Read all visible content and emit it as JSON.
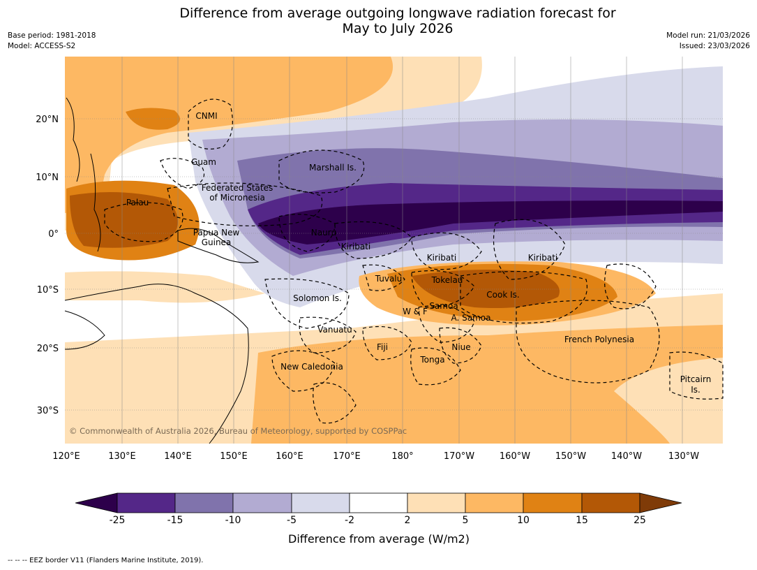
{
  "title_line1": "Difference from average outgoing longwave radiation forecast for",
  "title_line2": "May to July 2026",
  "meta_left": {
    "base_period": "Base period: 1981-2018",
    "model": "Model: ACCESS-S2"
  },
  "meta_right": {
    "model_run": "Model run: 21/03/2026",
    "issued": "Issued: 23/03/2026"
  },
  "lat_labels": [
    "20°N",
    "10°N",
    "0°",
    "10°S",
    "20°S",
    "30°S"
  ],
  "lon_labels": [
    "120°E",
    "130°E",
    "140°E",
    "150°E",
    "160°E",
    "170°E",
    "180°",
    "170°W",
    "160°W",
    "150°W",
    "140°W",
    "130°W"
  ],
  "regions": [
    "CNMI",
    "Guam",
    "Marshall Is.",
    "Federated States",
    "of Micronesia",
    "Palau",
    "Papua New",
    "Guinea",
    "Nauru",
    "Kiribati",
    "Kiribati",
    "Kiribati",
    "Tuvalu",
    "Tokelau",
    "Cook Is.",
    "Solomon Is.",
    "Samoa",
    "W & F",
    "A. Samoa",
    "Vanuatu",
    "Fiji",
    "Niue",
    "Tonga",
    "French Polynesia",
    "New Caledonia",
    "Pitcairn",
    "Is."
  ],
  "copyright": "© Commonwealth of Australia 2026, Bureau of Meteorology, supported by COSPPac",
  "colorbar": {
    "ticks": [
      "-25",
      "-15",
      "-10",
      "-5",
      "-2",
      "2",
      "5",
      "10",
      "15",
      "25"
    ],
    "colors": [
      "#2d004b",
      "#542788",
      "#8073ac",
      "#b2abd2",
      "#d8daeb",
      "#ffffff",
      "#fee0b6",
      "#fdb863",
      "#e08214",
      "#b35806",
      "#7f3b08"
    ],
    "title": "Difference from average (W/m2)"
  },
  "footnote": "--  --  -- EEZ border V11 (Flanders Marine Institute, 2019)."
}
